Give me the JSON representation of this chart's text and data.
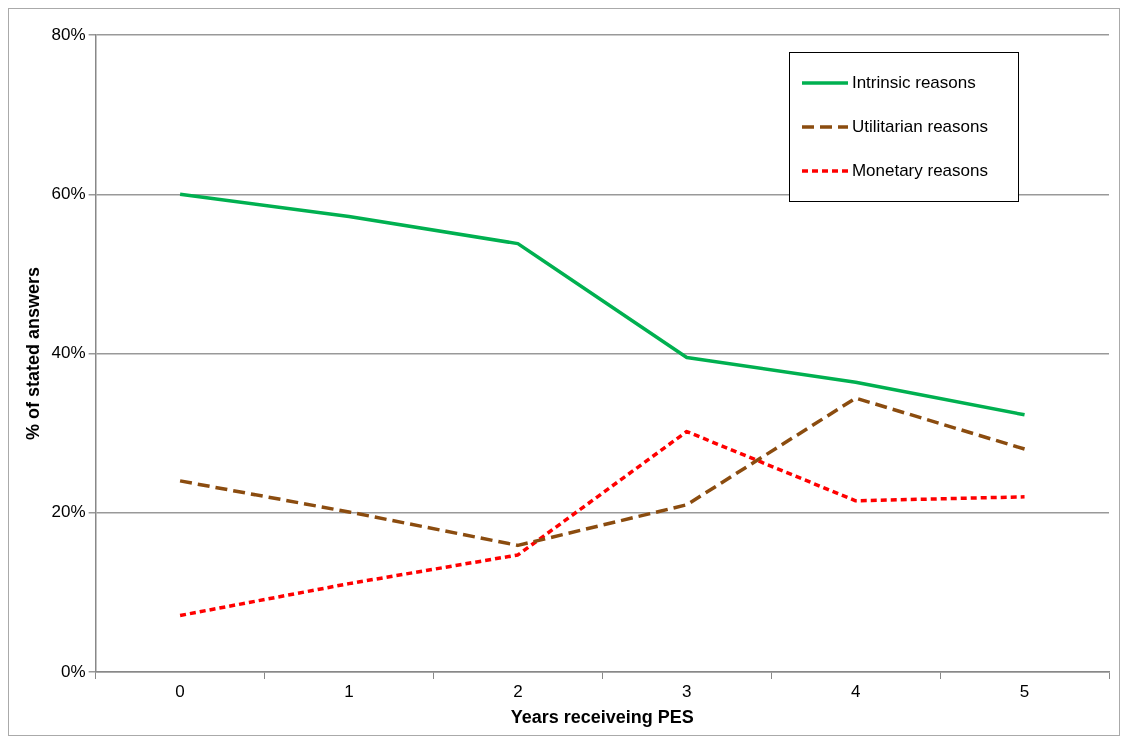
{
  "chart_data": {
    "type": "line",
    "xlabel": "Years receiveing PES",
    "ylabel": "% of stated answers",
    "categories": [
      "0",
      "1",
      "2",
      "3",
      "4",
      "5"
    ],
    "series": [
      {
        "name": "Intrinsic reasons",
        "color": "#00b050",
        "line_style": "solid",
        "values": [
          60,
          57.2,
          53.8,
          39.5,
          36.4,
          32.3
        ]
      },
      {
        "name": "Utilitarian reasons",
        "color": "#8b4c0f",
        "line_style": "dashed",
        "values": [
          24,
          20.1,
          15.9,
          21,
          34.4,
          28
        ]
      },
      {
        "name": "Monetary reasons",
        "color": "#ff0000",
        "line_style": "dotted",
        "values": [
          7.1,
          11.1,
          14.7,
          30.2,
          21.5,
          22
        ]
      }
    ],
    "ylim": [
      0,
      80
    ],
    "yticks": [
      {
        "value": 0,
        "label": "0%"
      },
      {
        "value": 20,
        "label": "20%"
      },
      {
        "value": 40,
        "label": "40%"
      },
      {
        "value": 60,
        "label": "60%"
      },
      {
        "value": 80,
        "label": "80%"
      }
    ],
    "grid": "y",
    "legend": "top right",
    "marker": "none"
  }
}
